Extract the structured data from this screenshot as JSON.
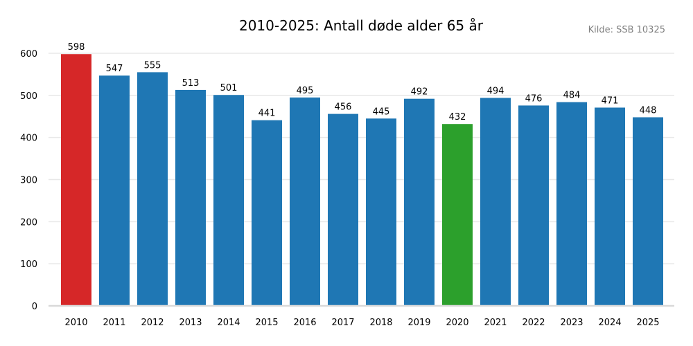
{
  "chart_data": {
    "type": "bar",
    "title": "2010-2025: Antall døde alder 65 år",
    "source_note": "Kilde: SSB 10325",
    "xlabel": "",
    "ylabel": "",
    "categories": [
      "2010",
      "2011",
      "2012",
      "2013",
      "2014",
      "2015",
      "2016",
      "2017",
      "2018",
      "2019",
      "2020",
      "2021",
      "2022",
      "2023",
      "2024",
      "2025"
    ],
    "values": [
      598,
      547,
      555,
      513,
      501,
      441,
      495,
      456,
      445,
      492,
      432,
      494,
      476,
      484,
      471,
      448
    ],
    "ylim": [
      0,
      600
    ],
    "yticks": [
      0,
      100,
      200,
      300,
      400,
      500,
      600
    ],
    "grid": "horizontal",
    "data_labels": true,
    "colors": {
      "default": "#1f77b4",
      "max": "#d62728",
      "min": "#2ca02c",
      "grid": "#e8e8e8",
      "axis": "#d9d9d9"
    }
  }
}
